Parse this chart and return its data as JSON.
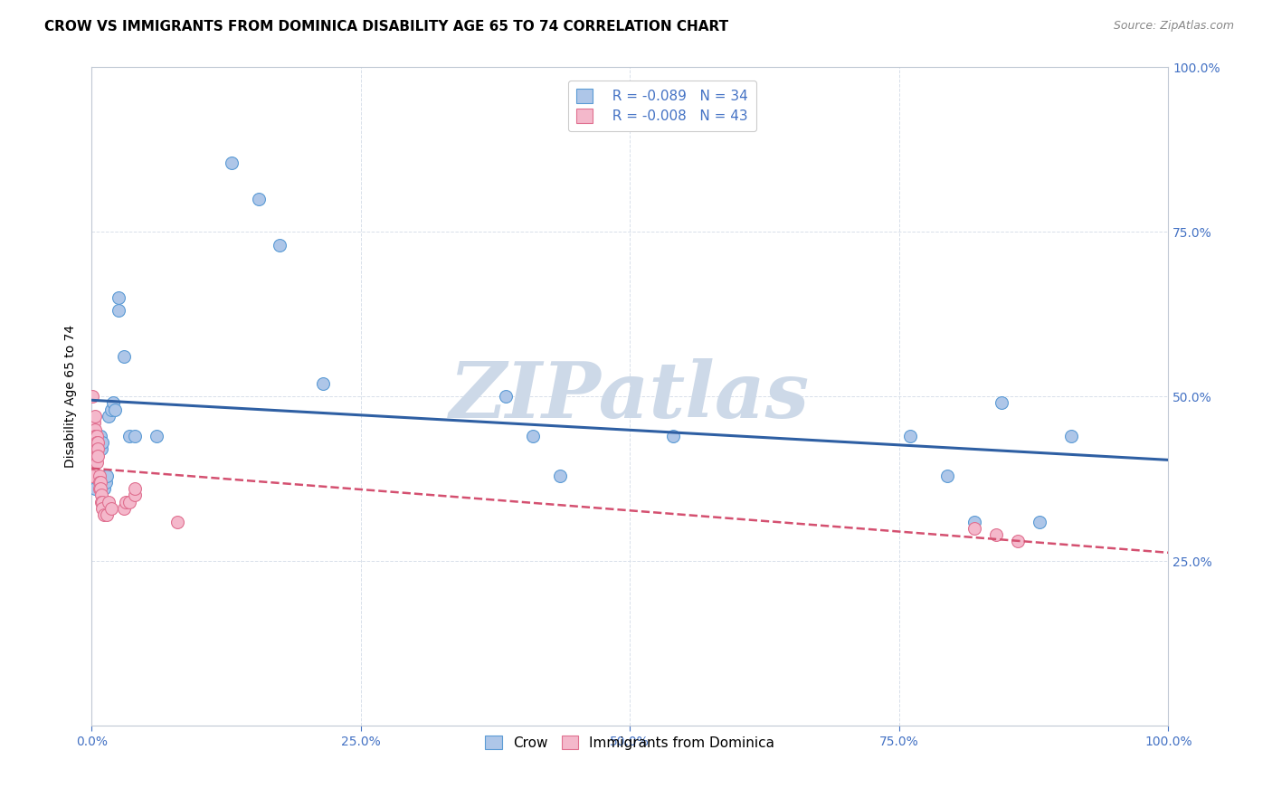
{
  "title": "CROW VS IMMIGRANTS FROM DOMINICA DISABILITY AGE 65 TO 74 CORRELATION CHART",
  "source_text": "Source: ZipAtlas.com",
  "ylabel": "Disability Age 65 to 74",
  "xlim": [
    0,
    1.0
  ],
  "ylim": [
    0,
    1.0
  ],
  "xticks": [
    0.0,
    0.25,
    0.5,
    0.75,
    1.0
  ],
  "xtick_labels": [
    "0.0%",
    "25.0%",
    "50.0%",
    "75.0%",
    "100.0%"
  ],
  "yticks": [
    0.0,
    0.25,
    0.5,
    0.75,
    1.0
  ],
  "ytick_labels": [
    "",
    "25.0%",
    "50.0%",
    "75.0%",
    "100.0%"
  ],
  "crow_R": -0.089,
  "crow_N": 34,
  "dominica_R": -0.008,
  "dominica_N": 43,
  "crow_color": "#aec6e8",
  "crow_edge_color": "#5b9bd5",
  "dominica_color": "#f4b8cb",
  "dominica_edge_color": "#e07090",
  "trend_crow_color": "#2e5fa3",
  "trend_dominica_color": "#d45070",
  "background_color": "#ffffff",
  "watermark_color": "#cdd9e8",
  "crow_x": [
    0.003,
    0.005,
    0.007,
    0.008,
    0.009,
    0.01,
    0.011,
    0.012,
    0.013,
    0.014,
    0.016,
    0.018,
    0.02,
    0.022,
    0.025,
    0.025,
    0.03,
    0.035,
    0.04,
    0.06,
    0.13,
    0.155,
    0.175,
    0.215,
    0.385,
    0.41,
    0.435,
    0.54,
    0.76,
    0.795,
    0.82,
    0.845,
    0.88,
    0.91
  ],
  "crow_y": [
    0.36,
    0.44,
    0.42,
    0.44,
    0.42,
    0.43,
    0.36,
    0.36,
    0.37,
    0.38,
    0.47,
    0.48,
    0.49,
    0.48,
    0.63,
    0.65,
    0.56,
    0.44,
    0.44,
    0.44,
    0.855,
    0.8,
    0.73,
    0.52,
    0.5,
    0.44,
    0.38,
    0.44,
    0.44,
    0.38,
    0.31,
    0.49,
    0.31,
    0.44
  ],
  "dominica_x": [
    0.001,
    0.001,
    0.001,
    0.002,
    0.002,
    0.002,
    0.003,
    0.003,
    0.003,
    0.003,
    0.004,
    0.004,
    0.004,
    0.005,
    0.005,
    0.005,
    0.005,
    0.005,
    0.006,
    0.006,
    0.006,
    0.007,
    0.007,
    0.007,
    0.008,
    0.008,
    0.009,
    0.009,
    0.01,
    0.01,
    0.012,
    0.014,
    0.016,
    0.018,
    0.03,
    0.032,
    0.035,
    0.04,
    0.04,
    0.08,
    0.82,
    0.84,
    0.86
  ],
  "dominica_y": [
    0.5,
    0.42,
    0.38,
    0.42,
    0.46,
    0.43,
    0.47,
    0.45,
    0.44,
    0.4,
    0.44,
    0.43,
    0.41,
    0.44,
    0.43,
    0.42,
    0.41,
    0.4,
    0.43,
    0.42,
    0.41,
    0.38,
    0.37,
    0.36,
    0.37,
    0.36,
    0.35,
    0.34,
    0.34,
    0.33,
    0.32,
    0.32,
    0.34,
    0.33,
    0.33,
    0.34,
    0.34,
    0.35,
    0.36,
    0.31,
    0.3,
    0.29,
    0.28
  ],
  "title_fontsize": 11,
  "axis_label_fontsize": 10,
  "tick_fontsize": 10,
  "legend_fontsize": 11,
  "marker_size": 10,
  "grid_color": "#d8e0ea",
  "right_ytick_color": "#4472c4",
  "xtick_color": "#4472c4"
}
